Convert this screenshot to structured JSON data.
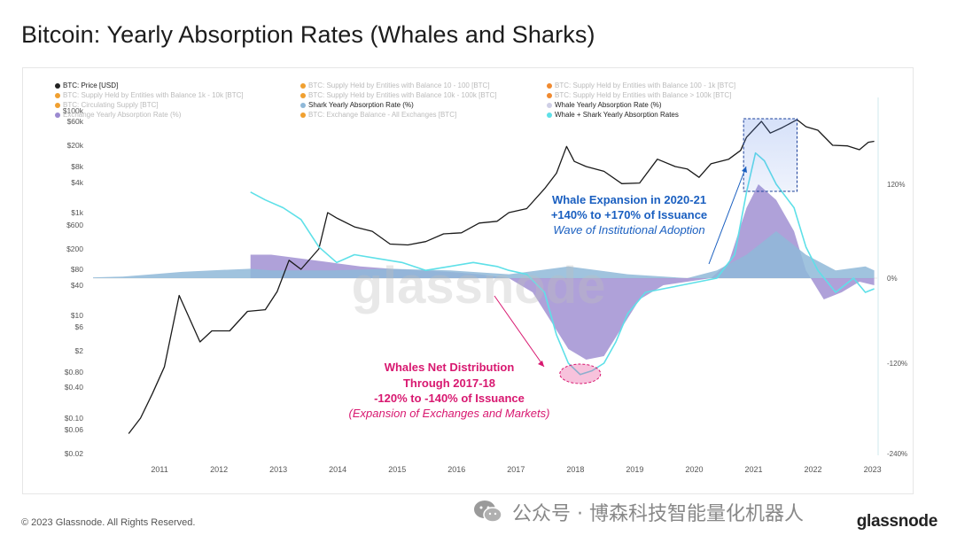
{
  "page": {
    "title": "Bitcoin: Yearly Absorption Rates (Whales and Sharks)",
    "copyright": "© 2023 Glassnode. All Rights Reserved.",
    "footer_logo": "glassnode",
    "wechat_caption": "公众号 · 博森科技智能量化机器人",
    "watermark": "glassnode"
  },
  "legend": [
    {
      "label": "BTC: Price [USD]",
      "color": "#222222",
      "state": "active"
    },
    {
      "label": "BTC: Supply Held by Entities with Balance 10 - 100 [BTC]",
      "color": "#f0a030",
      "state": "faded"
    },
    {
      "label": "BTC: Supply Held by Entities with Balance 100 - 1k [BTC]",
      "color": "#f08a30",
      "state": "faded"
    },
    {
      "label": "BTC: Supply Held by Entities with Balance 1k - 10k [BTC]",
      "color": "#f0a030",
      "state": "faded"
    },
    {
      "label": "BTC: Supply Held by Entities with Balance 10k - 100k [BTC]",
      "color": "#f0a030",
      "state": "faded"
    },
    {
      "label": "BTC: Supply Held by Entities with Balance > 100k [BTC]",
      "color": "#f08a30",
      "state": "faded"
    },
    {
      "label": "BTC: Circulating Supply [BTC]",
      "color": "#f0a030",
      "state": "faded"
    },
    {
      "label": "Shark Yearly Absorption Rate (%)",
      "color": "#8fb8d8",
      "state": "active"
    },
    {
      "label": "Whale Yearly Absorption Rate (%)",
      "color": "#cfcfe6",
      "state": "active"
    },
    {
      "label": "Exchange Yearly Absorption Rate (%)",
      "color": "#9b8ad0",
      "state": "faded"
    },
    {
      "label": "BTC: Exchange Balance - All Exchanges [BTC]",
      "color": "#f0a030",
      "state": "faded"
    },
    {
      "label": "Whale + Shark Yearly Absorption Rates",
      "color": "#5ee0e8",
      "state": "active"
    }
  ],
  "annotations": {
    "expansion": {
      "line1": "Whale Expansion in 2020-21",
      "line2": "+140% to +170% of Issuance",
      "line3": "Wave of Institutional Adoption",
      "color": "#1a5fc0"
    },
    "distribution": {
      "line1": "Whales Net Distribution",
      "line2": "Through 2017-18",
      "line3": "-120% to -140% of Issuance",
      "line4": "(Expansion of Exchanges and Markets)",
      "color": "#d81870"
    }
  },
  "chart_data": {
    "type": "line",
    "title": "Bitcoin: Yearly Absorption Rates (Whales and Sharks)",
    "x_ticks": [
      "2011",
      "2012",
      "2013",
      "2014",
      "2015",
      "2016",
      "2017",
      "2018",
      "2019",
      "2020",
      "2021",
      "2022",
      "2023"
    ],
    "y_left_ticks": [
      "$0.02",
      "$0.06",
      "$0.10",
      "$0.40",
      "$0.80",
      "$2",
      "$6",
      "$10",
      "$40",
      "$80",
      "$200",
      "$600",
      "$1k",
      "$4k",
      "$8k",
      "$20k",
      "$60k",
      "$100k"
    ],
    "y_left_scale": "log",
    "y_right_ticks": [
      "120%",
      "0%",
      "-120%",
      "-240%"
    ],
    "y_right_range": [
      -240,
      120
    ],
    "series": [
      {
        "name": "BTC: Price [USD]",
        "color": "#1a1a1a",
        "axis": "left",
        "points": [
          [
            2010.6,
            0.05
          ],
          [
            2010.8,
            0.1
          ],
          [
            2011.0,
            0.3
          ],
          [
            2011.2,
            1.0
          ],
          [
            2011.45,
            25
          ],
          [
            2011.6,
            10
          ],
          [
            2011.8,
            3
          ],
          [
            2012.0,
            5
          ],
          [
            2012.3,
            5
          ],
          [
            2012.6,
            12
          ],
          [
            2012.9,
            13
          ],
          [
            2013.1,
            30
          ],
          [
            2013.3,
            120
          ],
          [
            2013.5,
            80
          ],
          [
            2013.8,
            200
          ],
          [
            2013.95,
            1000
          ],
          [
            2014.1,
            800
          ],
          [
            2014.4,
            550
          ],
          [
            2014.7,
            450
          ],
          [
            2015.0,
            250
          ],
          [
            2015.3,
            240
          ],
          [
            2015.6,
            280
          ],
          [
            2015.9,
            400
          ],
          [
            2016.2,
            420
          ],
          [
            2016.5,
            650
          ],
          [
            2016.8,
            700
          ],
          [
            2017.0,
            1000
          ],
          [
            2017.3,
            1200
          ],
          [
            2017.6,
            3000
          ],
          [
            2017.8,
            6000
          ],
          [
            2017.97,
            19000
          ],
          [
            2018.1,
            10000
          ],
          [
            2018.3,
            8000
          ],
          [
            2018.6,
            6500
          ],
          [
            2018.9,
            3800
          ],
          [
            2019.2,
            3900
          ],
          [
            2019.5,
            11000
          ],
          [
            2019.8,
            8000
          ],
          [
            2020.0,
            7200
          ],
          [
            2020.2,
            5000
          ],
          [
            2020.4,
            9000
          ],
          [
            2020.7,
            11000
          ],
          [
            2020.9,
            16000
          ],
          [
            2021.0,
            29000
          ],
          [
            2021.25,
            60000
          ],
          [
            2021.4,
            35000
          ],
          [
            2021.6,
            45000
          ],
          [
            2021.85,
            65000
          ],
          [
            2022.0,
            47000
          ],
          [
            2022.2,
            40000
          ],
          [
            2022.45,
            20000
          ],
          [
            2022.7,
            19500
          ],
          [
            2022.9,
            16500
          ],
          [
            2023.05,
            23000
          ],
          [
            2023.15,
            24000
          ]
        ]
      },
      {
        "name": "Whale + Shark Yearly Absorption Rates",
        "color": "#5ee0e8",
        "axis": "right",
        "points": [
          [
            2012.65,
            110
          ],
          [
            2012.9,
            100
          ],
          [
            2013.2,
            90
          ],
          [
            2013.5,
            75
          ],
          [
            2013.8,
            40
          ],
          [
            2014.1,
            20
          ],
          [
            2014.4,
            30
          ],
          [
            2014.8,
            25
          ],
          [
            2015.2,
            20
          ],
          [
            2015.6,
            10
          ],
          [
            2016.0,
            15
          ],
          [
            2016.4,
            20
          ],
          [
            2016.8,
            15
          ],
          [
            2017.0,
            10
          ],
          [
            2017.3,
            5
          ],
          [
            2017.6,
            -20
          ],
          [
            2017.8,
            -80
          ],
          [
            2018.0,
            -120
          ],
          [
            2018.2,
            -135
          ],
          [
            2018.4,
            -130
          ],
          [
            2018.6,
            -120
          ],
          [
            2018.8,
            -90
          ],
          [
            2019.0,
            -50
          ],
          [
            2019.3,
            -20
          ],
          [
            2019.6,
            -15
          ],
          [
            2019.9,
            -10
          ],
          [
            2020.2,
            -5
          ],
          [
            2020.5,
            0
          ],
          [
            2020.8,
            30
          ],
          [
            2021.0,
            110
          ],
          [
            2021.15,
            160
          ],
          [
            2021.3,
            150
          ],
          [
            2021.5,
            120
          ],
          [
            2021.8,
            90
          ],
          [
            2022.0,
            40
          ],
          [
            2022.2,
            10
          ],
          [
            2022.5,
            -20
          ],
          [
            2022.8,
            0
          ],
          [
            2023.0,
            -20
          ],
          [
            2023.15,
            -15
          ]
        ]
      },
      {
        "name": "Whale Yearly Absorption Rate (%)",
        "color": "#9b8ad0",
        "axis": "right",
        "area": true,
        "points": [
          [
            2012.65,
            30
          ],
          [
            2013.0,
            30
          ],
          [
            2013.5,
            25
          ],
          [
            2014.0,
            20
          ],
          [
            2014.5,
            15
          ],
          [
            2015.0,
            12
          ],
          [
            2015.5,
            10
          ],
          [
            2016.0,
            8
          ],
          [
            2016.5,
            5
          ],
          [
            2017.0,
            0
          ],
          [
            2017.4,
            -20
          ],
          [
            2017.7,
            -60
          ],
          [
            2018.0,
            -100
          ],
          [
            2018.3,
            -115
          ],
          [
            2018.6,
            -110
          ],
          [
            2018.9,
            -70
          ],
          [
            2019.2,
            -30
          ],
          [
            2019.6,
            -10
          ],
          [
            2020.0,
            -5
          ],
          [
            2020.4,
            0
          ],
          [
            2020.7,
            20
          ],
          [
            2021.0,
            90
          ],
          [
            2021.2,
            120
          ],
          [
            2021.5,
            100
          ],
          [
            2021.8,
            60
          ],
          [
            2022.0,
            10
          ],
          [
            2022.3,
            -30
          ],
          [
            2022.6,
            -20
          ],
          [
            2022.9,
            -5
          ],
          [
            2023.15,
            -10
          ]
        ]
      },
      {
        "name": "Shark Yearly Absorption Rate (%)",
        "color": "#8fb8d8",
        "axis": "right",
        "area": true,
        "points": [
          [
            2010.0,
            1
          ],
          [
            2010.5,
            2
          ],
          [
            2011.0,
            5
          ],
          [
            2011.5,
            8
          ],
          [
            2012.0,
            10
          ],
          [
            2012.65,
            12
          ],
          [
            2013.0,
            10
          ],
          [
            2014.0,
            10
          ],
          [
            2015.0,
            12
          ],
          [
            2016.0,
            10
          ],
          [
            2017.0,
            5
          ],
          [
            2017.5,
            10
          ],
          [
            2018.0,
            15
          ],
          [
            2019.0,
            5
          ],
          [
            2020.0,
            0
          ],
          [
            2020.5,
            10
          ],
          [
            2021.0,
            30
          ],
          [
            2021.5,
            60
          ],
          [
            2022.0,
            30
          ],
          [
            2022.5,
            10
          ],
          [
            2023.0,
            15
          ],
          [
            2023.15,
            10
          ]
        ]
      }
    ],
    "highlights": [
      {
        "label": "Whale Expansion in 2020-21",
        "x_range": [
          2020.95,
          2021.85
        ],
        "y_right_range": [
          60,
          105
        ]
      },
      {
        "label": "Whales Net Distribution",
        "x": 2018.2,
        "y_right": -125
      }
    ]
  }
}
